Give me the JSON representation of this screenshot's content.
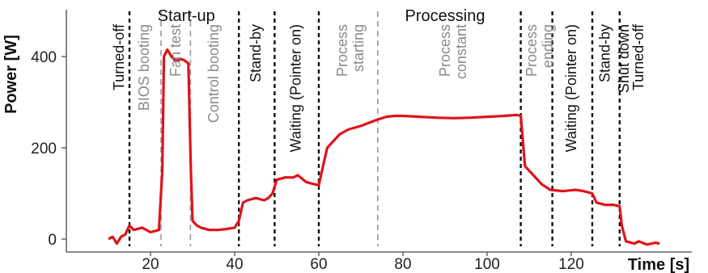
{
  "chart_data": {
    "type": "line",
    "title": "",
    "xlabel": "Time [s]",
    "ylabel": "Power [W]",
    "xlim": [
      0,
      135
    ],
    "ylim": [
      -15,
      500
    ],
    "xticks": [
      20,
      40,
      60,
      80,
      100,
      120
    ],
    "yticks": [
      0,
      200,
      400
    ],
    "grid": false,
    "colors": {
      "series": "#e0131a",
      "dark_line": "#111111",
      "gray_line": "#9a9a9a"
    },
    "group_labels": [
      {
        "text": "Start-up",
        "x": 28.5
      },
      {
        "text": "Processing",
        "x": 90
      }
    ],
    "phase_lines": [
      {
        "x": 15,
        "style": "dark"
      },
      {
        "x": 22.5,
        "style": "gray"
      },
      {
        "x": 29.5,
        "style": "gray"
      },
      {
        "x": 41,
        "style": "dark"
      },
      {
        "x": 49.5,
        "style": "dark"
      },
      {
        "x": 60,
        "style": "dark"
      },
      {
        "x": 74,
        "style": "gray"
      },
      {
        "x": 108,
        "style": "dark"
      },
      {
        "x": 115.5,
        "style": "dark"
      },
      {
        "x": 125,
        "style": "dark"
      },
      {
        "x": 131.5,
        "style": "dark"
      }
    ],
    "phase_labels": [
      {
        "text": "Turned-off",
        "x": 12.5,
        "style": "dark"
      },
      {
        "text": "BIOS booting",
        "x": 18.5,
        "style": "gray"
      },
      {
        "text": "Fan test",
        "x": 26,
        "style": "gray"
      },
      {
        "text": "Control booting",
        "x": 35,
        "style": "gray"
      },
      {
        "text": "Stand-by",
        "x": 45,
        "style": "dark"
      },
      {
        "text": "Waiting (Pointer on)",
        "x": 54.5,
        "style": "dark"
      },
      {
        "text": "Process starting",
        "x": 66.5,
        "style": "gray",
        "lines": [
          "Process",
          "starting"
        ]
      },
      {
        "text": "Process constant",
        "x": 91,
        "style": "gray",
        "lines": [
          "Process",
          "constant"
        ]
      },
      {
        "text": "Process ending",
        "x": 111.5,
        "style": "gray",
        "lines": [
          "Process",
          "ending"
        ]
      },
      {
        "text": "Waiting (Pointer on)",
        "x": 120,
        "style": "dark"
      },
      {
        "text": "Stand-by",
        "x": 128,
        "style": "dark"
      },
      {
        "text": "Shut down",
        "x": 132.5,
        "style": "dark"
      },
      {
        "text": "Turned-off",
        "x": 136,
        "style": "dark"
      }
    ],
    "series": [
      {
        "values": [
          [
            10,
            0
          ],
          [
            11,
            5
          ],
          [
            12,
            -10
          ],
          [
            13,
            5
          ],
          [
            14,
            10
          ],
          [
            15,
            30
          ],
          [
            16,
            20
          ],
          [
            18,
            25
          ],
          [
            20,
            15
          ],
          [
            22,
            20
          ],
          [
            22.8,
            150
          ],
          [
            23.2,
            400
          ],
          [
            24,
            415
          ],
          [
            25,
            400
          ],
          [
            26,
            390
          ],
          [
            27,
            395
          ],
          [
            28,
            392
          ],
          [
            29,
            385
          ],
          [
            29.6,
            150
          ],
          [
            30,
            40
          ],
          [
            31,
            30
          ],
          [
            32,
            25
          ],
          [
            34,
            20
          ],
          [
            36,
            20
          ],
          [
            38,
            22
          ],
          [
            40,
            25
          ],
          [
            41,
            40
          ],
          [
            42,
            80
          ],
          [
            43,
            85
          ],
          [
            45,
            90
          ],
          [
            47,
            85
          ],
          [
            48,
            90
          ],
          [
            49,
            100
          ],
          [
            50,
            130
          ],
          [
            52,
            135
          ],
          [
            54,
            135
          ],
          [
            55,
            140
          ],
          [
            57,
            125
          ],
          [
            59,
            120
          ],
          [
            60,
            118
          ],
          [
            61,
            160
          ],
          [
            62,
            200
          ],
          [
            64,
            220
          ],
          [
            65,
            230
          ],
          [
            67,
            240
          ],
          [
            70,
            248
          ],
          [
            72,
            255
          ],
          [
            74,
            262
          ],
          [
            76,
            268
          ],
          [
            78,
            270
          ],
          [
            80,
            270
          ],
          [
            84,
            268
          ],
          [
            88,
            266
          ],
          [
            92,
            265
          ],
          [
            96,
            266
          ],
          [
            100,
            268
          ],
          [
            104,
            270
          ],
          [
            107,
            272
          ],
          [
            108,
            270
          ],
          [
            109,
            160
          ],
          [
            110,
            150
          ],
          [
            111,
            140
          ],
          [
            113,
            120
          ],
          [
            115,
            108
          ],
          [
            118,
            105
          ],
          [
            121,
            108
          ],
          [
            123,
            105
          ],
          [
            125,
            100
          ],
          [
            126,
            80
          ],
          [
            128,
            75
          ],
          [
            130,
            75
          ],
          [
            131.5,
            72
          ],
          [
            132,
            30
          ],
          [
            133,
            -5
          ],
          [
            135,
            -10
          ],
          [
            136,
            -5
          ],
          [
            138,
            -12
          ],
          [
            140,
            -8
          ],
          [
            141,
            -10
          ]
        ]
      }
    ]
  }
}
